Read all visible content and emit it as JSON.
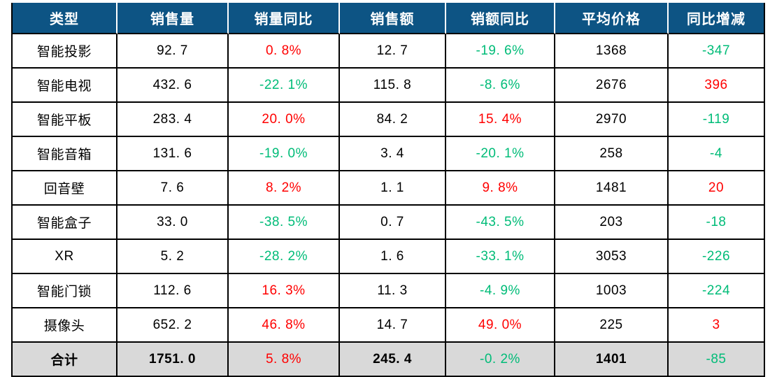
{
  "page": {
    "background": "#ffffff"
  },
  "colors": {
    "header_bg": "#0d5484",
    "header_text": "#ffffff",
    "positive": "#ff0000",
    "negative": "#00bc78",
    "body_text": "#000000",
    "total_row_bg": "#d9d9d9",
    "grid_border": "#000000"
  },
  "table": {
    "columns": [
      {
        "key": "type",
        "label": "类型"
      },
      {
        "key": "sales-volume",
        "label": "销售量"
      },
      {
        "key": "volume-yoy",
        "label": "销量同比"
      },
      {
        "key": "sales-amount",
        "label": "销售额"
      },
      {
        "key": "amount-yoy",
        "label": "销额同比"
      },
      {
        "key": "avg-price",
        "label": "平均价格"
      },
      {
        "key": "yoy-change",
        "label": "同比增减"
      }
    ],
    "rows": [
      {
        "cells": [
          {
            "v": "智能投影",
            "c": "black"
          },
          {
            "v": "92.7",
            "c": "black"
          },
          {
            "v": "0.8%",
            "c": "red"
          },
          {
            "v": "12.7",
            "c": "black"
          },
          {
            "v": "-19.6%",
            "c": "green"
          },
          {
            "v": "1368",
            "c": "black"
          },
          {
            "v": "-347",
            "c": "green"
          }
        ]
      },
      {
        "cells": [
          {
            "v": "智能电视",
            "c": "black"
          },
          {
            "v": "432.6",
            "c": "black"
          },
          {
            "v": "-22.1%",
            "c": "green"
          },
          {
            "v": "115.8",
            "c": "black"
          },
          {
            "v": "-8.6%",
            "c": "green"
          },
          {
            "v": "2676",
            "c": "black"
          },
          {
            "v": "396",
            "c": "red"
          }
        ]
      },
      {
        "cells": [
          {
            "v": "智能平板",
            "c": "black"
          },
          {
            "v": "283.4",
            "c": "black"
          },
          {
            "v": "20.0%",
            "c": "red"
          },
          {
            "v": "84.2",
            "c": "black"
          },
          {
            "v": "15.4%",
            "c": "red"
          },
          {
            "v": "2970",
            "c": "black"
          },
          {
            "v": "-119",
            "c": "green"
          }
        ]
      },
      {
        "cells": [
          {
            "v": "智能音箱",
            "c": "black"
          },
          {
            "v": "131.6",
            "c": "black"
          },
          {
            "v": "-19.0%",
            "c": "green"
          },
          {
            "v": "3.4",
            "c": "black"
          },
          {
            "v": "-20.1%",
            "c": "green"
          },
          {
            "v": "258",
            "c": "black"
          },
          {
            "v": "-4",
            "c": "green"
          }
        ]
      },
      {
        "cells": [
          {
            "v": "回音壁",
            "c": "black"
          },
          {
            "v": "7.6",
            "c": "black"
          },
          {
            "v": "8.2%",
            "c": "red"
          },
          {
            "v": "1.1",
            "c": "black"
          },
          {
            "v": "9.8%",
            "c": "red"
          },
          {
            "v": "1481",
            "c": "black"
          },
          {
            "v": "20",
            "c": "red"
          }
        ]
      },
      {
        "cells": [
          {
            "v": "智能盒子",
            "c": "black"
          },
          {
            "v": "33.0",
            "c": "black"
          },
          {
            "v": "-38.5%",
            "c": "green"
          },
          {
            "v": "0.7",
            "c": "black"
          },
          {
            "v": "-43.5%",
            "c": "green"
          },
          {
            "v": "203",
            "c": "black"
          },
          {
            "v": "-18",
            "c": "green"
          }
        ]
      },
      {
        "cells": [
          {
            "v": "XR",
            "c": "black"
          },
          {
            "v": "5.2",
            "c": "black"
          },
          {
            "v": "-28.2%",
            "c": "green"
          },
          {
            "v": "1.6",
            "c": "black"
          },
          {
            "v": "-33.1%",
            "c": "green"
          },
          {
            "v": "3053",
            "c": "black"
          },
          {
            "v": "-226",
            "c": "green"
          }
        ]
      },
      {
        "cells": [
          {
            "v": "智能门锁",
            "c": "black"
          },
          {
            "v": "112.6",
            "c": "black"
          },
          {
            "v": "16.3%",
            "c": "red"
          },
          {
            "v": "11.3",
            "c": "black"
          },
          {
            "v": "-4.9%",
            "c": "green"
          },
          {
            "v": "1003",
            "c": "black"
          },
          {
            "v": "-224",
            "c": "green"
          }
        ]
      },
      {
        "cells": [
          {
            "v": "摄像头",
            "c": "black"
          },
          {
            "v": "652.2",
            "c": "black"
          },
          {
            "v": "46.8%",
            "c": "red"
          },
          {
            "v": "14.7",
            "c": "black"
          },
          {
            "v": "49.0%",
            "c": "red"
          },
          {
            "v": "225",
            "c": "black"
          },
          {
            "v": "3",
            "c": "red"
          }
        ]
      },
      {
        "is_total": true,
        "cells": [
          {
            "v": "合计",
            "c": "black"
          },
          {
            "v": "1751.0",
            "c": "black"
          },
          {
            "v": "5.8%",
            "c": "red"
          },
          {
            "v": "245.4",
            "c": "black"
          },
          {
            "v": "-0.2%",
            "c": "green"
          },
          {
            "v": "1401",
            "c": "black"
          },
          {
            "v": "-85",
            "c": "green"
          }
        ]
      }
    ]
  },
  "chart_data": {
    "type": "table",
    "title": "",
    "columns": [
      "类型",
      "销售量",
      "销量同比",
      "销售额",
      "销额同比",
      "平均价格",
      "同比增减"
    ],
    "rows": [
      [
        "智能投影",
        92.7,
        "0.8%",
        12.7,
        "-19.6%",
        1368,
        -347
      ],
      [
        "智能电视",
        432.6,
        "-22.1%",
        115.8,
        "-8.6%",
        2676,
        396
      ],
      [
        "智能平板",
        283.4,
        "20.0%",
        84.2,
        "15.4%",
        2970,
        -119
      ],
      [
        "智能音箱",
        131.6,
        "-19.0%",
        3.4,
        "-20.1%",
        258,
        -4
      ],
      [
        "回音壁",
        7.6,
        "8.2%",
        1.1,
        "9.8%",
        1481,
        20
      ],
      [
        "智能盒子",
        33.0,
        "-38.5%",
        0.7,
        "-43.5%",
        203,
        -18
      ],
      [
        "XR",
        5.2,
        "-28.2%",
        1.6,
        "-33.1%",
        3053,
        -226
      ],
      [
        "智能门锁",
        112.6,
        "16.3%",
        11.3,
        "-4.9%",
        1003,
        -224
      ],
      [
        "摄像头",
        652.2,
        "46.8%",
        14.7,
        "49.0%",
        225,
        3
      ],
      [
        "合计",
        1751.0,
        "5.8%",
        245.4,
        "-0.2%",
        1401,
        -85
      ]
    ],
    "legend_note": "positive values shown in red, negative values shown in green; last row is totals with gray background"
  }
}
